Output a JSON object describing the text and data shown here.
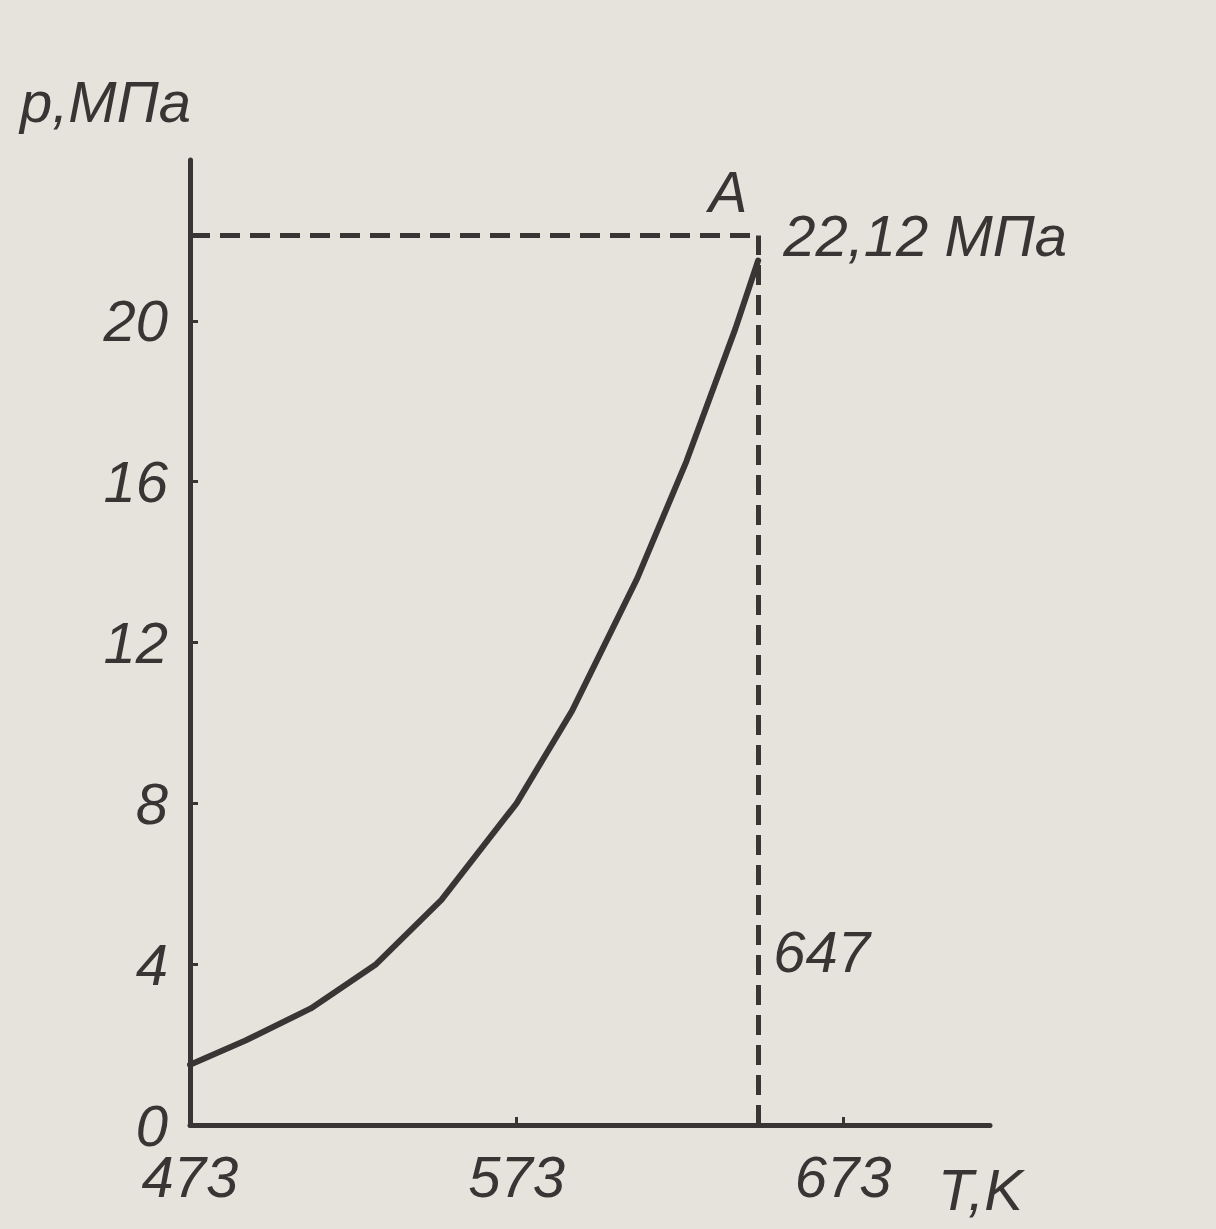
{
  "chart_data": {
    "type": "line",
    "xlabel": "T,K",
    "ylabel": "p,МПа",
    "x": [
      473,
      490,
      510,
      530,
      550,
      573,
      590,
      610,
      625,
      640,
      647
    ],
    "series": [
      {
        "color": "#3a3535",
        "values": [
          1.5,
          2.1,
          2.9,
          4.0,
          5.6,
          8.0,
          10.3,
          13.6,
          16.5,
          19.8,
          21.5
        ]
      }
    ],
    "xlim": [
      473,
      718
    ],
    "xticks": [
      473,
      573,
      673
    ],
    "ylim": [
      0,
      24
    ],
    "yticks": [
      0,
      4,
      8,
      12,
      16,
      20
    ],
    "ref_lines": [
      {
        "axis": "y",
        "value": 22.12,
        "label": "22,12 МПа",
        "line_style": "dashed",
        "color": "#3a3535"
      },
      {
        "axis": "x",
        "value": 647,
        "label": "647",
        "line_style": "dashed",
        "color": "#3a3535"
      }
    ],
    "annotations": [
      {
        "text": "A",
        "x": 647,
        "y": 22.12
      }
    ],
    "grid": false,
    "marker": "none",
    "line_style": "solid"
  }
}
